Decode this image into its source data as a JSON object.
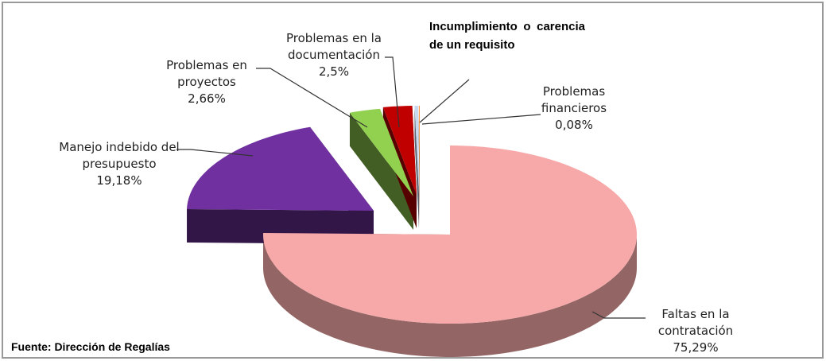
{
  "chart_data": {
    "type": "pie",
    "three_d": true,
    "categories": [
      "Faltas en la contratación",
      "Manejo indebido del presupuesto",
      "Problemas en proyectos",
      "Problemas en la documentación",
      "Incumplimiento o carencia de un requisito",
      "Problemas financieros"
    ],
    "values": [
      75.29,
      19.18,
      2.66,
      2.5,
      0.29,
      0.08
    ],
    "value_labels": [
      "75,29%",
      "19,18%",
      "2,66%",
      "2,5%",
      null,
      "0,08%"
    ],
    "colors": [
      "#f7a9a9",
      "#7030a0",
      "#92d050",
      "#c00000",
      "#c6d9f1",
      "#f79646"
    ],
    "source": "Fuente: Dirección de Regalías"
  }
}
